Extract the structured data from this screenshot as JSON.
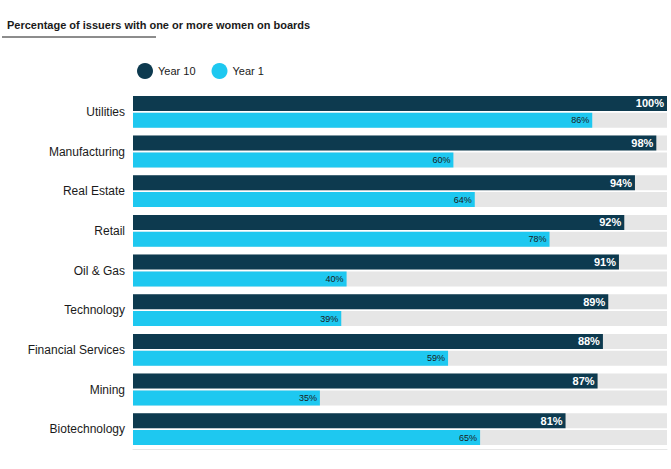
{
  "chart_data": {
    "type": "bar",
    "title": "Percentage of issuers with one or more women on boards",
    "orientation": "horizontal",
    "categories": [
      "Utilities",
      "Manufacturing",
      "Real Estate",
      "Retail",
      "Oil & Gas",
      "Technology",
      "Financial Services",
      "Mining",
      "Biotechnology"
    ],
    "series": [
      {
        "name": "Year 10",
        "color": "#0d3a4f",
        "values": [
          100,
          98,
          94,
          92,
          91,
          89,
          88,
          87,
          81
        ],
        "value_labels": [
          "100%",
          "98%",
          "94%",
          "92%",
          "91%",
          "89%",
          "88%",
          "87%",
          "81%"
        ]
      },
      {
        "name": "Year 1",
        "color": "#1ec8f0",
        "values": [
          86,
          60,
          64,
          78,
          40,
          39,
          59,
          35,
          65
        ],
        "value_labels": [
          "86%",
          "60%",
          "64%",
          "78%",
          "40%",
          "39%",
          "59%",
          "35%",
          "65%"
        ]
      }
    ],
    "xlim": [
      0,
      100
    ],
    "data_labels": true,
    "tick_labels": "y",
    "grid": false,
    "legend": "top-left"
  }
}
